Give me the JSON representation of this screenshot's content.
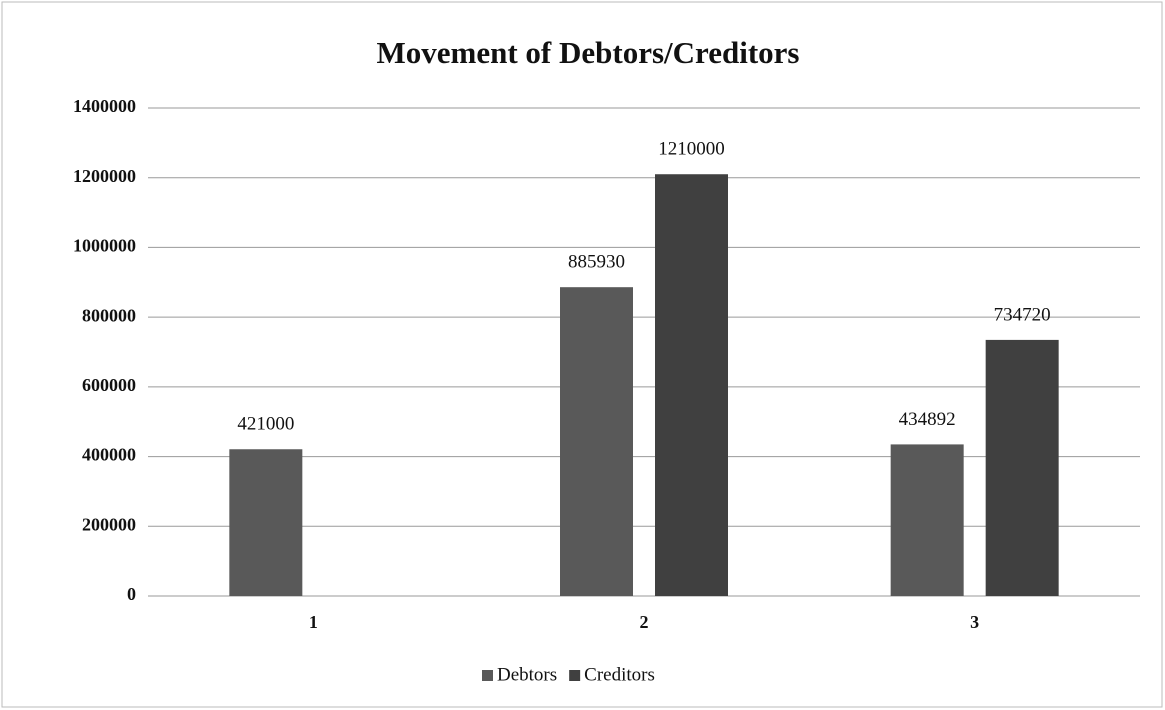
{
  "chart_data": {
    "type": "bar",
    "title": "Movement of Debtors/Creditors",
    "categories": [
      "1",
      "2",
      "3"
    ],
    "series": [
      {
        "name": "Debtors",
        "color": "#595959",
        "values": [
          421000,
          885930,
          434892
        ]
      },
      {
        "name": "Creditors",
        "color": "#404040",
        "values": [
          null,
          1210000,
          734720
        ]
      }
    ],
    "ylim": [
      0,
      1400000
    ],
    "yticks": [
      0,
      200000,
      400000,
      600000,
      800000,
      1000000,
      1200000,
      1400000
    ],
    "grid": true,
    "legend": "bottom"
  }
}
